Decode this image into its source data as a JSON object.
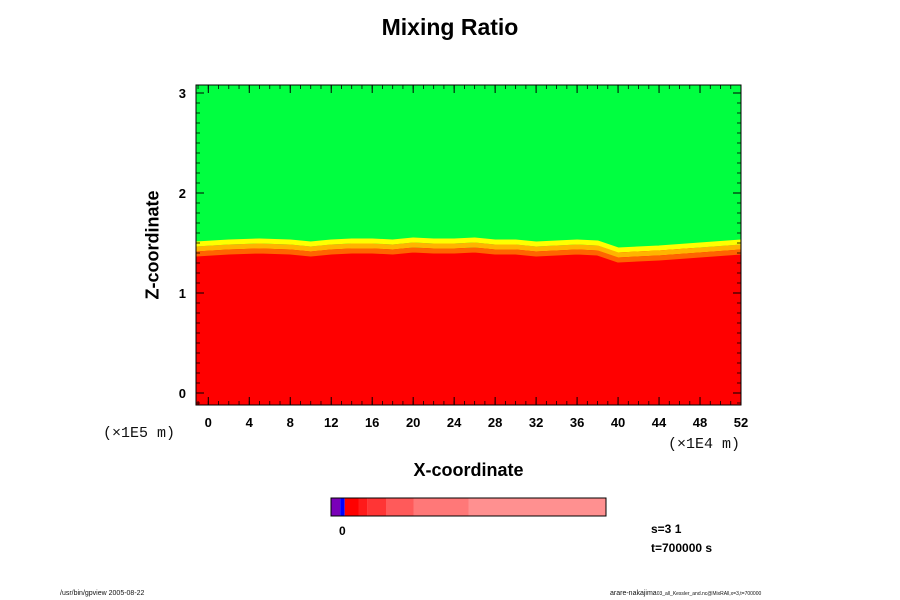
{
  "chart_data": {
    "type": "heatmap",
    "title": "Mixing Ratio",
    "xlabel": "X-coordinate",
    "ylabel": "Z-coordinate",
    "x_scale_label": "(×1E4 m)",
    "y_scale_label": "(×1E5 m)",
    "xlim": [
      -1.2,
      52
    ],
    "ylim": [
      -0.12,
      3.08
    ],
    "x_ticks": [
      0,
      4,
      8,
      12,
      16,
      20,
      24,
      28,
      32,
      36,
      40,
      44,
      48,
      52
    ],
    "y_ticks": [
      0,
      1,
      2,
      3
    ],
    "x_minor_step": 1,
    "y_minor_step": 0.1,
    "regions": [
      {
        "name": "upper",
        "color": "#00ff40",
        "z_range": [
          1.45,
          3.08
        ]
      },
      {
        "name": "lower",
        "color": "#ff0000",
        "z_range": [
          -0.12,
          1.45
        ]
      }
    ],
    "interface": {
      "x": [
        -1.2,
        2,
        5,
        8,
        10,
        12,
        14,
        16,
        18,
        20,
        22,
        24,
        26,
        28,
        30,
        32,
        34,
        36,
        38,
        40,
        44,
        48,
        52
      ],
      "z": [
        1.44,
        1.46,
        1.47,
        1.46,
        1.44,
        1.46,
        1.47,
        1.47,
        1.46,
        1.48,
        1.47,
        1.47,
        1.48,
        1.46,
        1.46,
        1.44,
        1.45,
        1.46,
        1.45,
        1.38,
        1.4,
        1.43,
        1.46
      ],
      "colors": [
        "#ffff00",
        "#ffb400",
        "#ff6400"
      ]
    },
    "colorbar": {
      "colors": [
        "#7a00b8",
        "#0000ff",
        "#ff0000",
        "#ff1a1a",
        "#ff3535",
        "#ff5a5a",
        "#ff7878",
        "#ff9090"
      ],
      "widths": [
        2,
        1,
        3,
        2,
        4,
        6,
        12,
        30
      ],
      "label": "0"
    }
  },
  "info": {
    "s_value": "s=3 1",
    "t_value": "t=700000 s"
  },
  "footer": {
    "left": "/usr/bin/gpview 2005-08-22",
    "right_main": "arare-nakajima",
    "right_small": "03_all_Kessler_and.nc@MixRAll,x=3,t=700000"
  }
}
